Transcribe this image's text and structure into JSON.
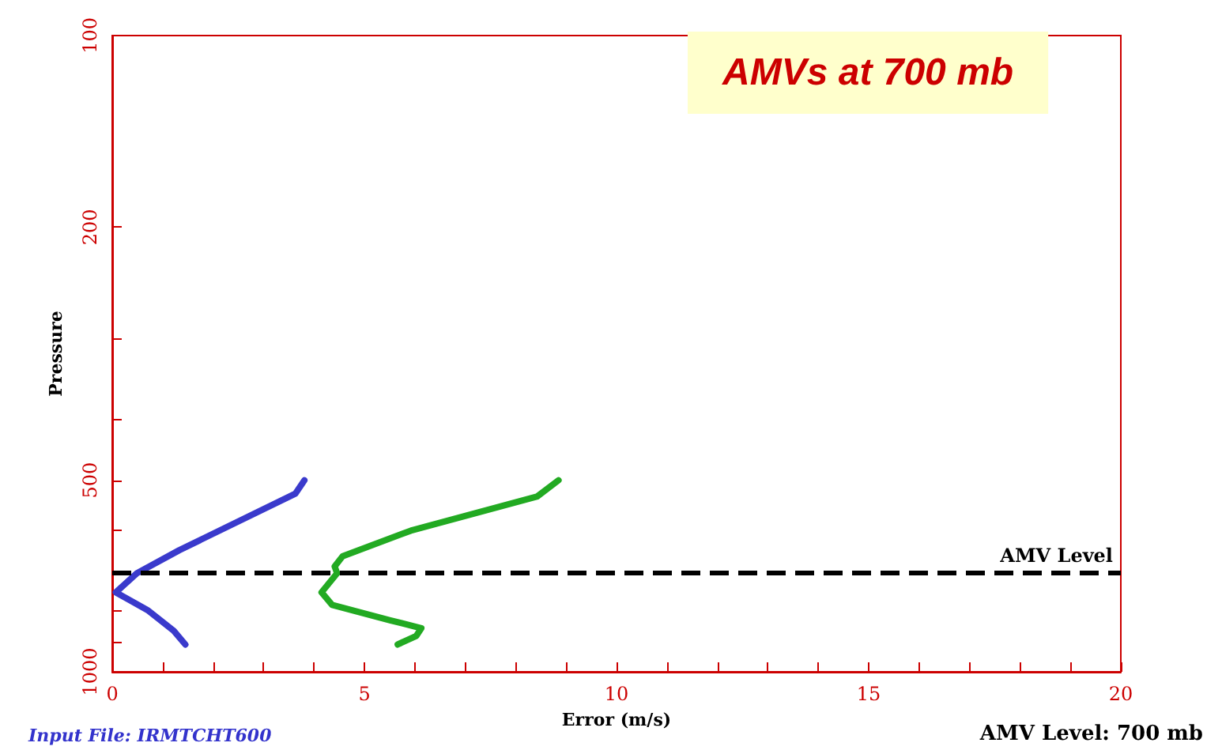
{
  "chart_data": {
    "type": "line",
    "title": "AMVs at 700 mb",
    "xlabel": "Error (m/s)",
    "ylabel": "Pressure",
    "annotations": [
      "Input File: IRMTCHT600",
      "AMV Level: 700 mb"
    ],
    "series": [
      {
        "color": "#3a3acc",
        "x": [
          3.81,
          3.63,
          1.33,
          0.49,
          0.07,
          0.7,
          1.22,
          1.45
        ],
        "values": [
          500,
          525,
          644,
          700,
          750,
          800,
          862,
          906
        ]
      },
      {
        "color": "#22aa22",
        "x": [
          8.85,
          8.43,
          5.92,
          4.57,
          4.41,
          4.46,
          4.15,
          4.36,
          5.51,
          6.13,
          6.03,
          5.66
        ],
        "values": [
          500,
          530,
          600,
          658,
          683,
          700,
          750,
          785,
          830,
          854,
          878,
          906
        ]
      }
    ],
    "xlim": [
      0,
      20
    ],
    "xticks": [
      0,
      {
        "value": 1,
        "label": null
      },
      {
        "value": 2,
        "label": null
      },
      {
        "value": 3,
        "label": null
      },
      {
        "value": 4,
        "label": null
      },
      5,
      {
        "value": 6,
        "label": null
      },
      {
        "value": 7,
        "label": null
      },
      {
        "value": 8,
        "label": null
      },
      {
        "value": 9,
        "label": null
      },
      10,
      {
        "value": 11,
        "label": null
      },
      {
        "value": 12,
        "label": null
      },
      {
        "value": 13,
        "label": null
      },
      {
        "value": 14,
        "label": null
      },
      15,
      {
        "value": 16,
        "label": null
      },
      {
        "value": 17,
        "label": null
      },
      {
        "value": 18,
        "label": null
      },
      {
        "value": 19,
        "label": null
      },
      20
    ],
    "ylim": [
      1000,
      100
    ],
    "log": "y",
    "yticks": [
      100,
      200,
      {
        "value": 300,
        "label": null
      },
      {
        "value": 400,
        "label": null
      },
      500,
      {
        "value": 600,
        "label": null
      },
      {
        "value": 700,
        "label": null
      },
      {
        "value": 800,
        "label": null
      },
      {
        "value": 900,
        "label": null
      },
      1000
    ],
    "ref_lines": [
      {
        "axis": "y",
        "value": 700,
        "label": "AMV Level",
        "color": "#000000",
        "line_style": "dashed"
      }
    ],
    "marker": "none",
    "line_style": "solid"
  }
}
